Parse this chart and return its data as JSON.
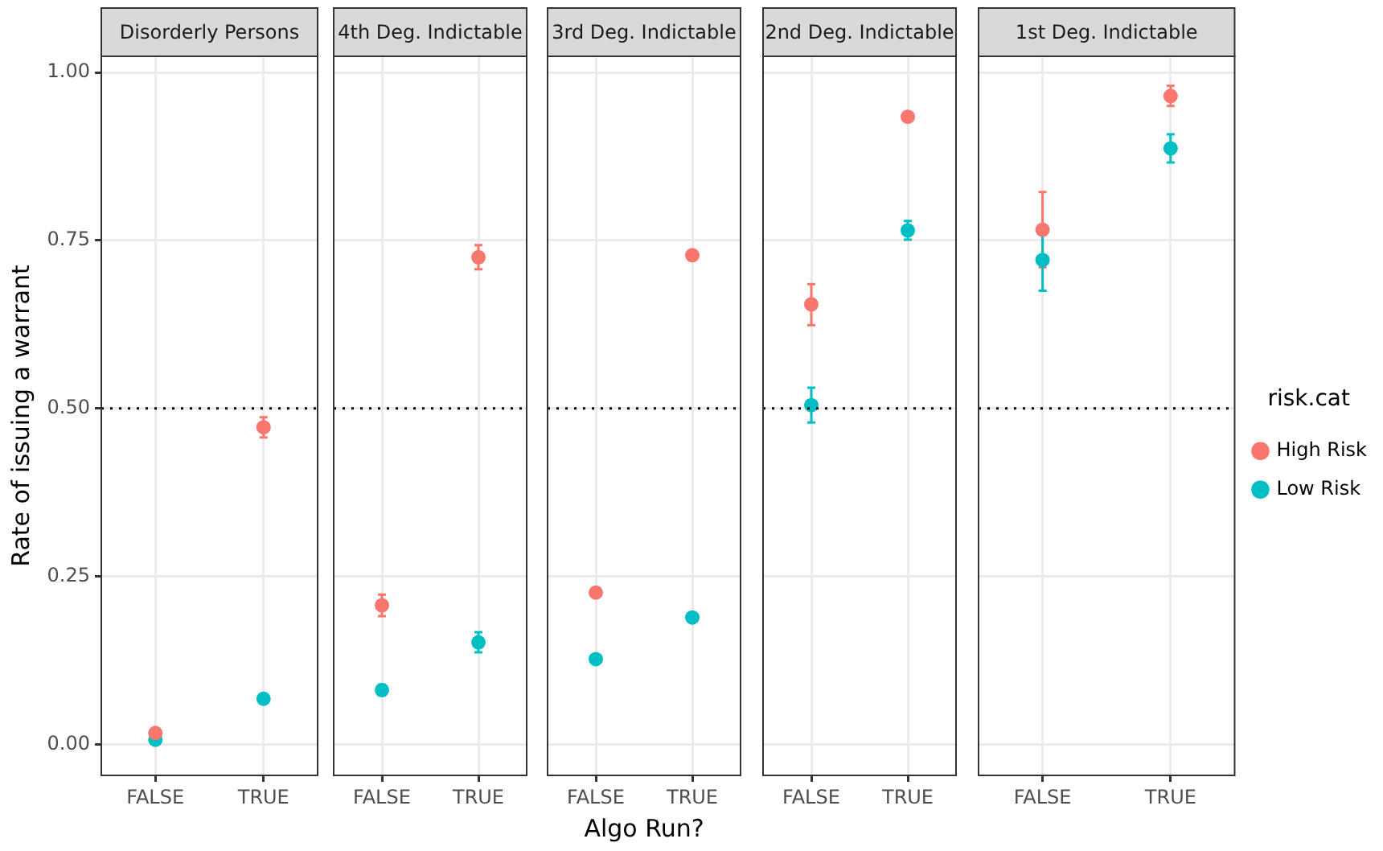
{
  "chart_data": [
    {
      "type": "scatter",
      "title": "Disorderly Persons",
      "ylabel": "Rate of issuing a warrant",
      "categories": [
        "FALSE",
        "TRUE"
      ],
      "marker": "circle",
      "grid": true,
      "ylim": [
        -0.046,
        1.024
      ],
      "yticks": [
        {
          "value": 0,
          "label": "0.00"
        },
        {
          "value": 0.25,
          "label": "0.25"
        },
        {
          "value": 0.5,
          "label": "0.50"
        },
        {
          "value": 0.75,
          "label": "0.75"
        },
        {
          "value": 1,
          "label": "1.00"
        }
      ],
      "ref_lines": [
        {
          "axis": "y",
          "value": 0.5,
          "line_style": "dotted",
          "color": "#000000"
        }
      ],
      "series": [
        {
          "color": "#f8766d",
          "values": [
            0.017,
            0.472
          ],
          "errors": [
            null,
            0.015
          ]
        },
        {
          "color": "#00bfc4",
          "values": [
            0.007,
            0.068
          ],
          "errors": [
            0.002,
            0.003
          ]
        }
      ]
    },
    {
      "type": "scatter",
      "title": "4th Deg. Indictable",
      "categories": [
        "FALSE",
        "TRUE"
      ],
      "marker": "circle",
      "grid": true,
      "tick_labels": "x",
      "ylim": [
        -0.046,
        1.024
      ],
      "yticks": [
        0,
        0.25,
        0.5,
        0.75,
        1
      ],
      "ref_lines": [
        {
          "axis": "y",
          "value": 0.5,
          "line_style": "dotted",
          "color": "#000000"
        }
      ],
      "series": [
        {
          "color": "#f8766d",
          "values": [
            0.207,
            0.725
          ],
          "errors": [
            0.016,
            0.018
          ]
        },
        {
          "color": "#00bfc4",
          "values": [
            0.081,
            0.152
          ],
          "errors": [
            0.008,
            0.015
          ]
        }
      ]
    },
    {
      "type": "scatter",
      "title": "3rd Deg. Indictable",
      "xlabel": "Algo Run?",
      "categories": [
        "FALSE",
        "TRUE"
      ],
      "marker": "circle",
      "grid": true,
      "tick_labels": "x",
      "ylim": [
        -0.046,
        1.024
      ],
      "yticks": [
        0,
        0.25,
        0.5,
        0.75,
        1
      ],
      "ref_lines": [
        {
          "axis": "y",
          "value": 0.5,
          "line_style": "dotted",
          "color": "#000000"
        }
      ],
      "series": [
        {
          "color": "#f8766d",
          "values": [
            0.226,
            0.728
          ],
          "errors": [
            0.007,
            null
          ]
        },
        {
          "color": "#00bfc4",
          "values": [
            0.127,
            0.189
          ]
        }
      ]
    },
    {
      "type": "scatter",
      "title": "2nd Deg. Indictable",
      "categories": [
        "FALSE",
        "TRUE"
      ],
      "marker": "circle",
      "grid": true,
      "tick_labels": "x",
      "ylim": [
        -0.046,
        1.024
      ],
      "yticks": [
        0,
        0.25,
        0.5,
        0.75,
        1
      ],
      "ref_lines": [
        {
          "axis": "y",
          "value": 0.5,
          "line_style": "dotted",
          "color": "#000000"
        }
      ],
      "series": [
        {
          "color": "#f8766d",
          "values": [
            0.655,
            0.934
          ],
          "errors": [
            [
              0.624,
              0.685
            ],
            0.007
          ]
        },
        {
          "color": "#00bfc4",
          "values": [
            0.505,
            0.765
          ],
          "errors": [
            [
              0.479,
              0.531
            ],
            0.014
          ]
        }
      ]
    },
    {
      "type": "scatter",
      "title": "1st Deg. Indictable",
      "categories": [
        "FALSE",
        "TRUE"
      ],
      "marker": "circle",
      "grid": true,
      "tick_labels": "x",
      "legend": "right",
      "legend_title": "risk.cat",
      "ylim": [
        -0.046,
        1.024
      ],
      "yticks": [
        0,
        0.25,
        0.5,
        0.75,
        1
      ],
      "ref_lines": [
        {
          "axis": "y",
          "value": 0.5,
          "line_style": "dotted",
          "color": "#000000"
        }
      ],
      "series": [
        {
          "name": "High Risk",
          "color": "#f8766d",
          "values": [
            0.766,
            0.965
          ],
          "errors": [
            [
              0.71,
              0.822
            ],
            0.015
          ]
        },
        {
          "name": "Low Risk",
          "color": "#00bfc4",
          "values": [
            0.721,
            0.887
          ],
          "errors": [
            [
              0.675,
              0.767
            ],
            0.021
          ]
        }
      ]
    }
  ]
}
